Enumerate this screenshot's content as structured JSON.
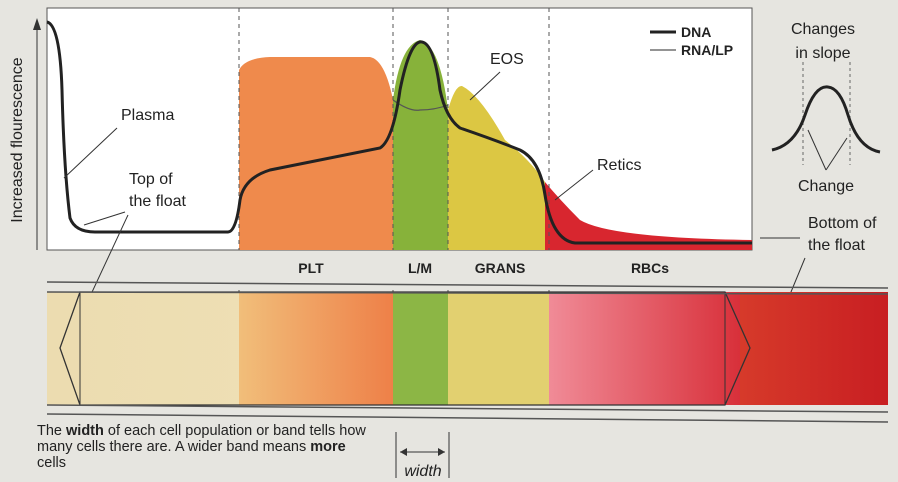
{
  "axis_label": "Increased flourescence",
  "legend": [
    "DNA",
    "RNA/LP"
  ],
  "annotations": {
    "plasma": "Plasma",
    "top_of_float": [
      "Top of",
      "the float"
    ],
    "eos": "EOS",
    "retics": "Retics",
    "bottom_of_float": [
      "Bottom of",
      "the float"
    ]
  },
  "bands": [
    "PLT",
    "L/M",
    "GRANS",
    "RBCs"
  ],
  "inset": {
    "title": [
      "Changes",
      "in slope"
    ],
    "label": "Change"
  },
  "caption": [
    "The ",
    "width",
    " of each cell population or band tells how many cells there are. A wider band means ",
    "more",
    " cells"
  ],
  "width_label": "width"
}
